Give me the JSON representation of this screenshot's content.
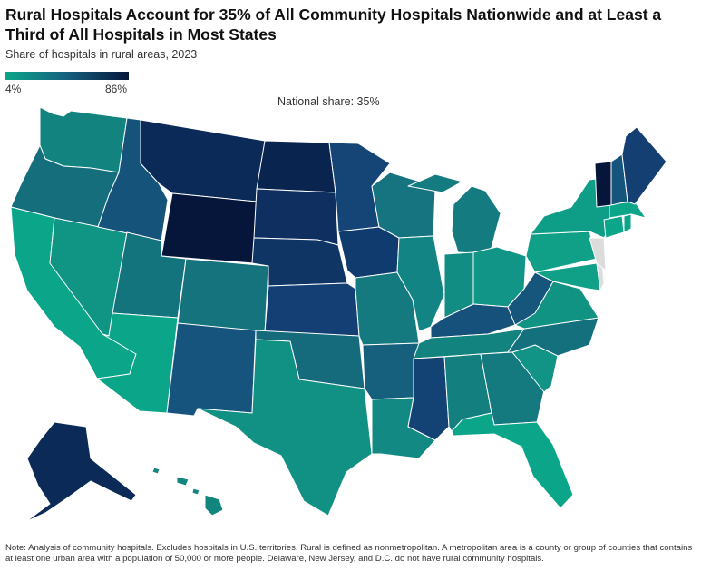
{
  "title": "Rural Hospitals Account for 35% of All Community Hospitals Nationwide and at Least a Third of All Hospitals in Most States",
  "subtitle": "Share of hospitals in rural areas, 2023",
  "legend": {
    "min_label": "4%",
    "max_label": "86%",
    "min_value": 4,
    "max_value": 86,
    "min_color": "#0ba58a",
    "max_color": "#06163a",
    "no_data_color": "#dcdcdc"
  },
  "national_share": "National share: 35%",
  "note": "Note: Analysis of community hospitals. Excludes hospitals in U.S. territories. Rural is defined as nonmetropolitan. A metropolitan area is a county or group of counties that contains at least one urban area with a population of 50,000 or more people. Delaware, New Jersey, and D.C. do not have rural community hospitals.",
  "states": [
    {
      "abbr": "WA",
      "color": "#13837f"
    },
    {
      "abbr": "OR",
      "color": "#156e7c"
    },
    {
      "abbr": "CA",
      "color": "#0ba58a"
    },
    {
      "abbr": "NV",
      "color": "#109484"
    },
    {
      "abbr": "ID",
      "color": "#16537b"
    },
    {
      "abbr": "MT",
      "color": "#0b2a57"
    },
    {
      "abbr": "WY",
      "color": "#06163a"
    },
    {
      "abbr": "UT",
      "color": "#14747e"
    },
    {
      "abbr": "AZ",
      "color": "#0ba58a"
    },
    {
      "abbr": "CO",
      "color": "#15737e"
    },
    {
      "abbr": "NM",
      "color": "#16537d"
    },
    {
      "abbr": "ND",
      "color": "#0a2450"
    },
    {
      "abbr": "SD",
      "color": "#0e2f60"
    },
    {
      "abbr": "NE",
      "color": "#0f3565"
    },
    {
      "abbr": "KS",
      "color": "#133f74"
    },
    {
      "abbr": "OK",
      "color": "#156a7c"
    },
    {
      "abbr": "TX",
      "color": "#119084"
    },
    {
      "abbr": "MN",
      "color": "#154577"
    },
    {
      "abbr": "IA",
      "color": "#0f3b6e"
    },
    {
      "abbr": "MO",
      "color": "#147a80"
    },
    {
      "abbr": "AR",
      "color": "#16607e"
    },
    {
      "abbr": "LA",
      "color": "#128a83"
    },
    {
      "abbr": "WI",
      "color": "#15747f"
    },
    {
      "abbr": "IL",
      "color": "#128483"
    },
    {
      "abbr": "MI",
      "color": "#147c81"
    },
    {
      "abbr": "IN",
      "color": "#118d84"
    },
    {
      "abbr": "OH",
      "color": "#109586"
    },
    {
      "abbr": "KY",
      "color": "#16517b"
    },
    {
      "abbr": "TN",
      "color": "#13837f"
    },
    {
      "abbr": "MS",
      "color": "#134275"
    },
    {
      "abbr": "AL",
      "color": "#13807f"
    },
    {
      "abbr": "GA",
      "color": "#147a80"
    },
    {
      "abbr": "FL",
      "color": "#0ba58a"
    },
    {
      "abbr": "SC",
      "color": "#119385"
    },
    {
      "abbr": "NC",
      "color": "#15707e"
    },
    {
      "abbr": "VA",
      "color": "#119384"
    },
    {
      "abbr": "WV",
      "color": "#16557c"
    },
    {
      "abbr": "PA",
      "color": "#0fa087"
    },
    {
      "abbr": "NY",
      "color": "#0e9d87"
    },
    {
      "abbr": "MD",
      "color": "#0fa087"
    },
    {
      "abbr": "DE",
      "color": "#dcdcdc"
    },
    {
      "abbr": "NJ",
      "color": "#dcdcdc"
    },
    {
      "abbr": "CT",
      "color": "#0ba58a"
    },
    {
      "abbr": "RI",
      "color": "#0ba58a"
    },
    {
      "abbr": "MA",
      "color": "#0ba58a"
    },
    {
      "abbr": "VT",
      "color": "#06163a"
    },
    {
      "abbr": "NH",
      "color": "#15547c"
    },
    {
      "abbr": "ME",
      "color": "#143f73"
    },
    {
      "abbr": "AK",
      "color": "#0b2a57"
    },
    {
      "abbr": "HI",
      "color": "#12857f"
    }
  ]
}
